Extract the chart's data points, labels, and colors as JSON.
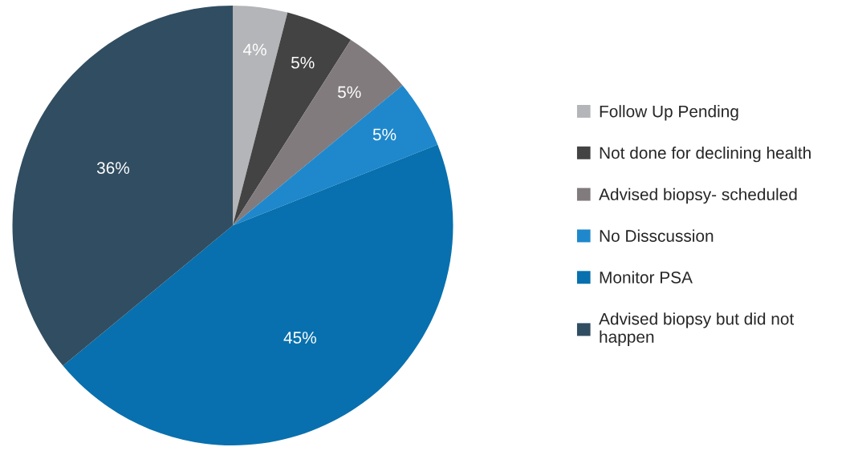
{
  "chart_data": {
    "type": "pie",
    "categories": [
      "Follow Up Pending",
      "Not done for declining health",
      "Advised biopsy- scheduled",
      "No Disscussion",
      "Monitor PSA",
      "Advised biopsy but did not happen"
    ],
    "values": [
      4,
      5,
      5,
      5,
      45,
      36
    ],
    "colors": [
      "#b3b5b8",
      "#434343",
      "#817b7d",
      "#1f88cc",
      "#0870ae",
      "#314d61"
    ],
    "value_labels": [
      "4%",
      "5%",
      "5%",
      "5%",
      "45%",
      "36%"
    ],
    "legend": "right"
  }
}
